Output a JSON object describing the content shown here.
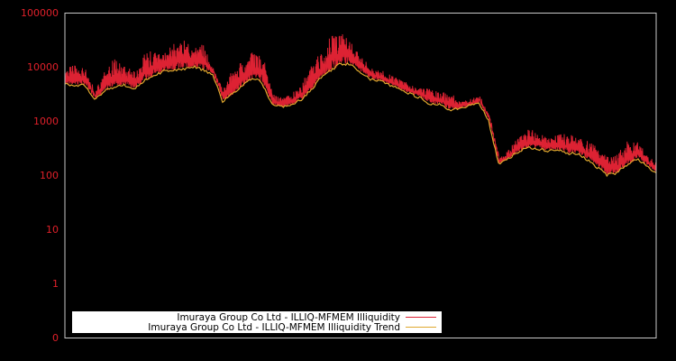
{
  "chart_data": {
    "type": "line",
    "title": "",
    "xlabel": "",
    "ylabel": "",
    "yscale": "log",
    "ylim": [
      0.1,
      100000
    ],
    "y_tick_labels": [
      "100000",
      "10000",
      "1000",
      "100",
      "10",
      "1",
      "0"
    ],
    "y_tick_values": [
      100000,
      10000,
      1000,
      100,
      10,
      1,
      0.1
    ],
    "x_tick_labels": [],
    "grid": false,
    "legend_position": "lower-left",
    "background": "#000000",
    "frame_color": "#c8c8c8",
    "x": [
      0,
      1,
      2,
      3,
      4,
      5,
      6,
      7,
      8,
      9,
      10,
      11,
      12,
      13,
      14,
      15,
      16,
      17,
      18,
      19,
      20,
      21,
      22,
      23,
      24,
      25,
      26,
      27,
      28,
      29,
      30,
      31,
      32,
      33,
      34,
      35,
      36,
      37,
      38,
      39,
      40,
      41,
      42,
      43,
      44,
      45,
      46,
      47,
      48,
      49,
      50,
      51,
      52,
      53,
      54,
      55,
      56,
      57,
      58,
      59,
      60
    ],
    "series": [
      {
        "name": "Imuraya Group Co Ltd - ILLIQ-MFMEM Illiquidity",
        "color": "#dd2233",
        "values": [
          8500,
          9500,
          8000,
          3500,
          7000,
          12000,
          9000,
          7500,
          14000,
          18000,
          16000,
          22000,
          25000,
          20000,
          22000,
          9000,
          3500,
          7500,
          11000,
          16000,
          13000,
          3000,
          2500,
          3000,
          4500,
          9000,
          16000,
          30000,
          40000,
          24000,
          14000,
          9000,
          8000,
          6500,
          5500,
          4500,
          3800,
          3600,
          3200,
          3000,
          2200,
          2300,
          1800,
          380,
          180,
          280,
          460,
          650,
          520,
          480,
          500,
          520,
          430,
          380,
          300,
          200,
          220,
          360,
          380,
          230,
          150
        ]
      },
      {
        "name": "Imuraya Group Co Ltd - ILLIQ-MFMEM Illiquidity Trend",
        "color": "#e0a82e",
        "values": [
          4800,
          4600,
          4600,
          2600,
          3500,
          4300,
          4600,
          3800,
          5500,
          6900,
          8300,
          8900,
          8900,
          10000,
          8900,
          7300,
          2300,
          3200,
          4300,
          6300,
          5100,
          2000,
          1800,
          2000,
          2500,
          3700,
          6500,
          8600,
          11500,
          11000,
          8000,
          5900,
          5500,
          4600,
          3800,
          3200,
          2700,
          2100,
          2000,
          1600,
          1700,
          1900,
          2200,
          1000,
          160,
          200,
          270,
          320,
          300,
          280,
          290,
          250,
          250,
          190,
          140,
          100,
          110,
          150,
          200,
          150,
          110
        ]
      }
    ]
  },
  "legend": {
    "items": [
      {
        "label": "Imuraya Group Co Ltd - ILLIQ-MFMEM Illiquidity",
        "color": "#dd2233"
      },
      {
        "label": "Imuraya Group Co Ltd - ILLIQ-MFMEM Illiquidity Trend",
        "color": "#e0a82e"
      }
    ]
  }
}
